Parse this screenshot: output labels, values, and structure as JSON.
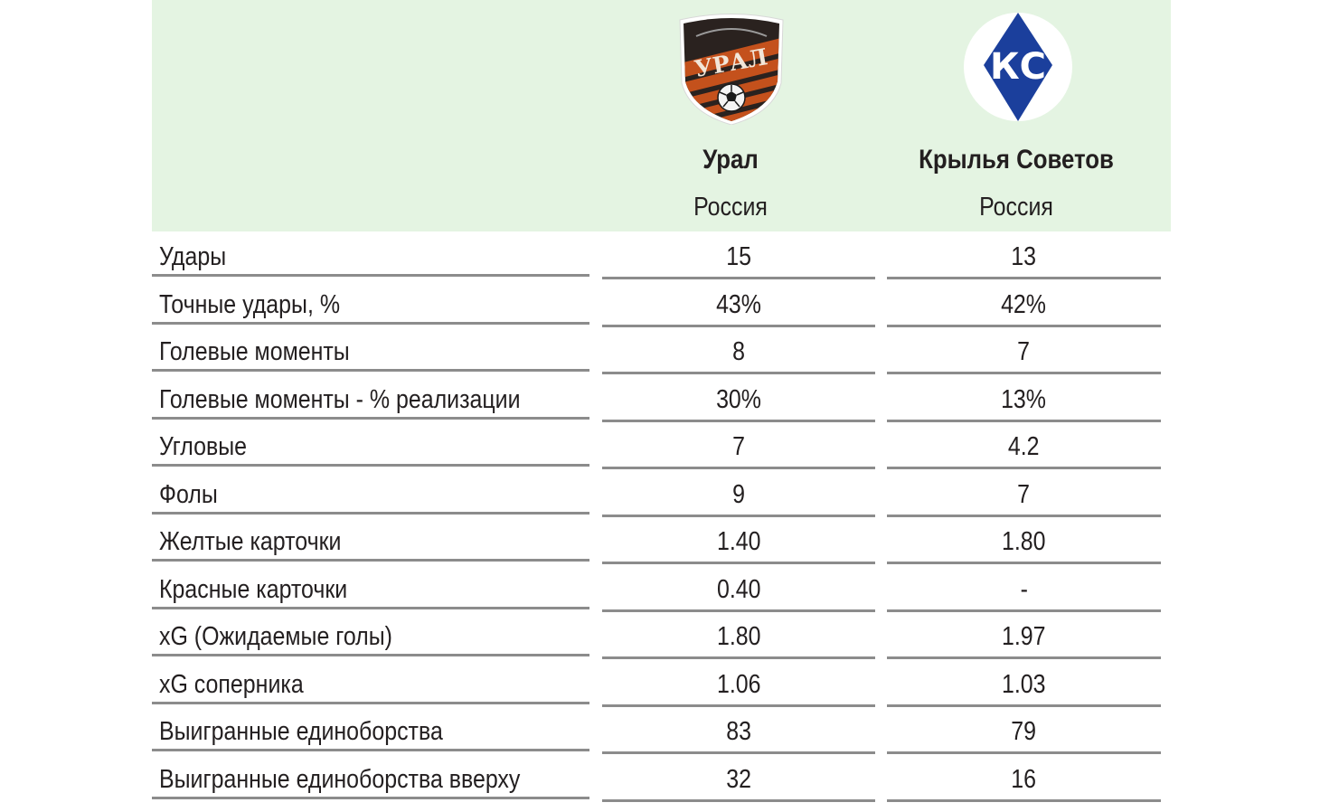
{
  "colors": {
    "header_background": "#e4f4e2",
    "row_divider": "#8c8c8c",
    "ural_logo_orange": "#c4511c",
    "ural_logo_dark": "#2a221f",
    "krylia_logo_blue": "#1b3f9c"
  },
  "teams": [
    {
      "name": "Урал",
      "country": "Россия",
      "logo": "ural-crest-icon",
      "logo_text": "УРАЛ"
    },
    {
      "name": "Крылья Советов",
      "country": "Россия",
      "logo": "krylia-sovetov-crest-icon",
      "logo_text": "КС"
    }
  ],
  "stats": [
    {
      "label": "Удары",
      "home": "15",
      "away": "13"
    },
    {
      "label": "Точные удары, %",
      "home": "43%",
      "away": "42%"
    },
    {
      "label": "Голевые моменты",
      "home": "8",
      "away": "7"
    },
    {
      "label": "Голевые моменты - % реализации",
      "home": "30%",
      "away": "13%"
    },
    {
      "label": "Угловые",
      "home": "7",
      "away": "4.2"
    },
    {
      "label": "Фолы",
      "home": "9",
      "away": "7"
    },
    {
      "label": "Желтые карточки",
      "home": "1.40",
      "away": "1.80"
    },
    {
      "label": "Красные карточки",
      "home": "0.40",
      "away": "-"
    },
    {
      "label": "xG (Ожидаемые голы)",
      "home": "1.80",
      "away": "1.97"
    },
    {
      "label": "xG соперника",
      "home": "1.06",
      "away": "1.03"
    },
    {
      "label": "Выигранные единоборства",
      "home": "83",
      "away": "79"
    },
    {
      "label": "Выигранные единоборства вверху",
      "home": "32",
      "away": "16"
    }
  ]
}
